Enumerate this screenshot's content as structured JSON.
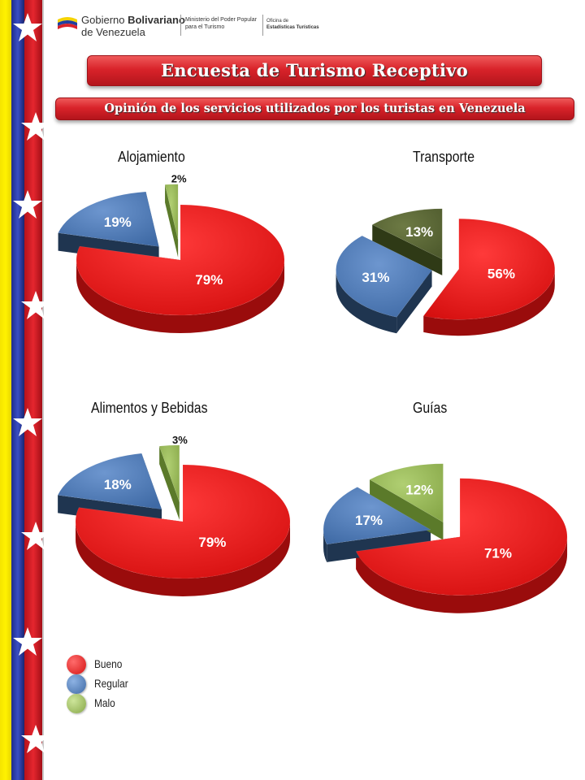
{
  "header": {
    "org_line1_normal": "Gobierno ",
    "org_line1_bold": "Bolivariano",
    "org_line2": "de Venezuela",
    "ministry_line1": "Ministerio del Poder Popular",
    "ministry_line2": "para el Turismo",
    "office_line1": "Oficina de",
    "office_line2": "Estadísticas Turísticas"
  },
  "title": "Encuesta de Turismo Receptivo",
  "subtitle": "Opinión de los servicios utilizados por los turistas en Venezuela",
  "colors": {
    "bueno": "#e31b1b",
    "regular": "#4f81bd",
    "malo": "#9bbb59",
    "transporte_malo": "#5f6b3a",
    "flag_yellow": "#fff200",
    "flag_blue": "#2a3caa",
    "flag_red": "#d9232a"
  },
  "legend": [
    "Bueno",
    "Regular",
    "Malo"
  ],
  "chart_data": [
    {
      "type": "pie",
      "title": "Alojamiento",
      "categories": [
        "Bueno",
        "Regular",
        "Malo"
      ],
      "values": [
        79,
        19,
        2
      ],
      "labels": [
        "79%",
        "19%",
        "2%"
      ]
    },
    {
      "type": "pie",
      "title": "Transporte",
      "categories": [
        "Bueno",
        "Regular",
        "Malo"
      ],
      "values": [
        56,
        31,
        13
      ],
      "labels": [
        "56%",
        "31%",
        "13%"
      ]
    },
    {
      "type": "pie",
      "title": "Alimentos y Bebidas",
      "categories": [
        "Bueno",
        "Regular",
        "Malo"
      ],
      "values": [
        79,
        18,
        3
      ],
      "labels": [
        "79%",
        "18%",
        "3%"
      ]
    },
    {
      "type": "pie",
      "title": "Guías",
      "categories": [
        "Bueno",
        "Regular",
        "Malo"
      ],
      "values": [
        71,
        17,
        12
      ],
      "labels": [
        "71%",
        "17%",
        "12%"
      ]
    }
  ]
}
